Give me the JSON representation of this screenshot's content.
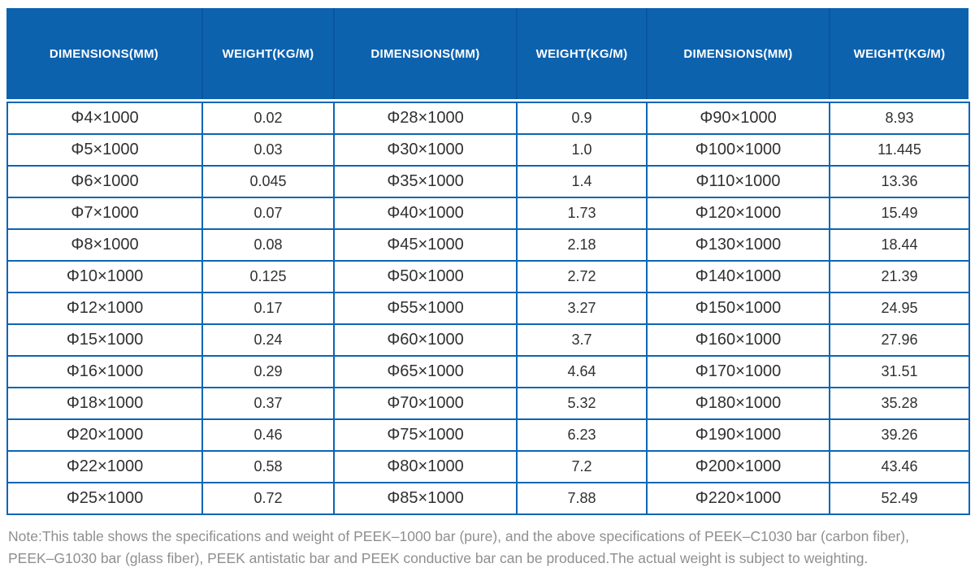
{
  "table": {
    "header_labels": [
      "DIMENSIONS(MM)",
      "WEIGHT(KG/M)",
      "DIMENSIONS(MM)",
      "WEIGHT(KG/M)",
      "DIMENSIONS(MM)",
      "WEIGHT(KG/M)"
    ],
    "rows": [
      [
        "Φ4×1000",
        "0.02",
        "Φ28×1000",
        "0.9",
        "Φ90×1000",
        "8.93"
      ],
      [
        "Φ5×1000",
        "0.03",
        "Φ30×1000",
        "1.0",
        "Φ100×1000",
        "11.445"
      ],
      [
        "Φ6×1000",
        "0.045",
        "Φ35×1000",
        "1.4",
        "Φ110×1000",
        "13.36"
      ],
      [
        "Φ7×1000",
        "0.07",
        "Φ40×1000",
        "1.73",
        "Φ120×1000",
        "15.49"
      ],
      [
        "Φ8×1000",
        "0.08",
        "Φ45×1000",
        "2.18",
        "Φ130×1000",
        "18.44"
      ],
      [
        "Φ10×1000",
        "0.125",
        "Φ50×1000",
        "2.72",
        "Φ140×1000",
        "21.39"
      ],
      [
        "Φ12×1000",
        "0.17",
        "Φ55×1000",
        "3.27",
        "Φ150×1000",
        "24.95"
      ],
      [
        "Φ15×1000",
        "0.24",
        "Φ60×1000",
        "3.7",
        "Φ160×1000",
        "27.96"
      ],
      [
        "Φ16×1000",
        "0.29",
        "Φ65×1000",
        "4.64",
        "Φ170×1000",
        "31.51"
      ],
      [
        "Φ18×1000",
        "0.37",
        "Φ70×1000",
        "5.32",
        "Φ180×1000",
        "35.28"
      ],
      [
        "Φ20×1000",
        "0.46",
        "Φ75×1000",
        "6.23",
        "Φ190×1000",
        "39.26"
      ],
      [
        "Φ22×1000",
        "0.58",
        "Φ80×1000",
        "7.2",
        "Φ200×1000",
        "43.46"
      ],
      [
        "Φ25×1000",
        "0.72",
        "Φ85×1000",
        "7.88",
        "Φ220×1000",
        "52.49"
      ]
    ]
  },
  "note": {
    "line1": "Note:This table shows the specifications and weight of PEEK–1000 bar (pure), and the above specifications of PEEK–C1030 bar (carbon fiber),",
    "line2": "PEEK–G1030 bar (glass fiber), PEEK antistatic bar and PEEK conductive bar can be produced.The actual weight is subject to weighting."
  },
  "colors": {
    "header_background": "#0d62ae",
    "header_text": "#ffffff",
    "table_border": "#0c65b3",
    "header_divider": "#0a55a3",
    "cell_text": "#303030",
    "note_text": "#8f8f8f"
  }
}
